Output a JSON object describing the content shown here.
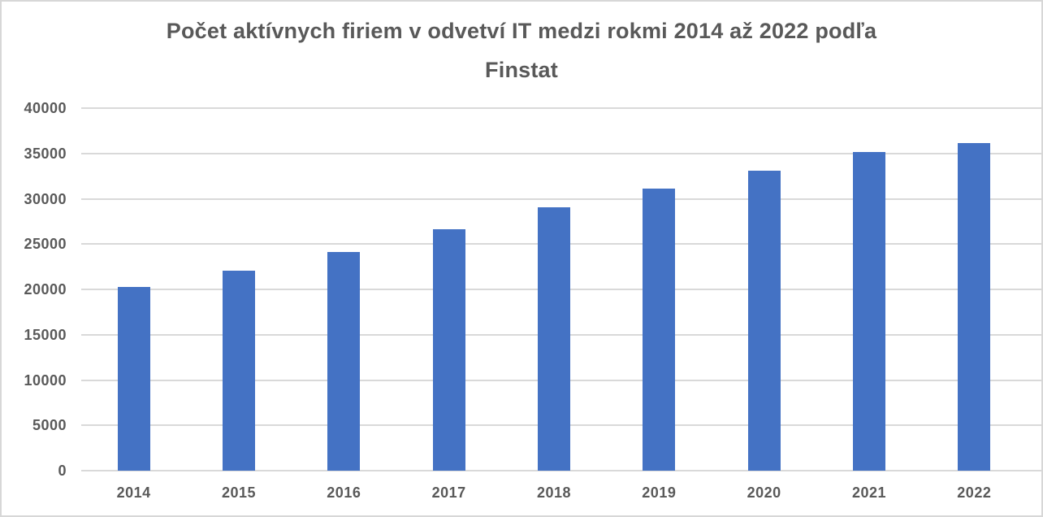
{
  "title": {
    "line1": "Počet aktívnych firiem v odvetví IT medzi rokmi 2014 až 2022 podľa",
    "line2": "Finstat"
  },
  "chart_data": {
    "type": "bar",
    "title": "Počet aktívnych firiem v odvetví IT medzi rokmi 2014 až 2022 podľa Finstat",
    "categories": [
      "2014",
      "2015",
      "2016",
      "2017",
      "2018",
      "2019",
      "2020",
      "2021",
      "2022"
    ],
    "values": [
      20300,
      22100,
      24100,
      26600,
      29100,
      31100,
      33100,
      35200,
      36100
    ],
    "y_ticks": [
      0,
      5000,
      10000,
      15000,
      20000,
      25000,
      30000,
      35000,
      40000
    ],
    "ylim": [
      0,
      40000
    ],
    "ytick_step": 5000,
    "xlabel": "",
    "ylabel": "",
    "grid": "horizontal",
    "legend": "none",
    "bar_color": "#4472C4",
    "text_color": "#595959",
    "gridline_color": "#D9D9D9",
    "frame_border_color": "#D7D7D7"
  }
}
